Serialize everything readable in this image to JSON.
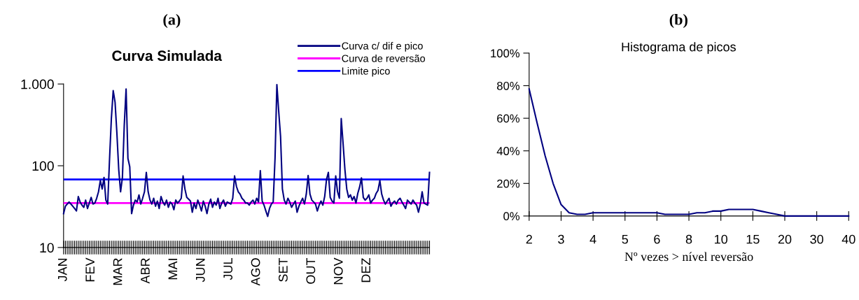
{
  "chart_data": [
    {
      "type": "line",
      "title": "(a)",
      "subtitle": "Curva Simulada",
      "log": "y",
      "legend": "top right",
      "grid": false,
      "marker": "none",
      "line_style": "solid",
      "categories": [
        "JAN",
        null,
        null,
        null,
        null,
        null,
        null,
        null,
        null,
        null,
        null,
        null,
        null,
        null,
        null,
        "FEV",
        null,
        null,
        null,
        null,
        null,
        null,
        null,
        null,
        null,
        null,
        null,
        null,
        null,
        null,
        "MAR",
        null,
        null,
        null,
        null,
        null,
        null,
        null,
        null,
        null,
        null,
        null,
        null,
        null,
        null,
        "ABR",
        null,
        null,
        null,
        null,
        null,
        null,
        null,
        null,
        null,
        null,
        null,
        null,
        null,
        null,
        "MAI",
        null,
        null,
        null,
        null,
        null,
        null,
        null,
        null,
        null,
        null,
        null,
        null,
        null,
        null,
        "JUN",
        null,
        null,
        null,
        null,
        null,
        null,
        null,
        null,
        null,
        null,
        null,
        null,
        null,
        null,
        "JUL",
        null,
        null,
        null,
        null,
        null,
        null,
        null,
        null,
        null,
        null,
        null,
        null,
        null,
        null,
        "AGO",
        null,
        null,
        null,
        null,
        null,
        null,
        null,
        null,
        null,
        null,
        null,
        null,
        null,
        null,
        "SET",
        null,
        null,
        null,
        null,
        null,
        null,
        null,
        null,
        null,
        null,
        null,
        null,
        null,
        null,
        "OUT",
        null,
        null,
        null,
        null,
        null,
        null,
        null,
        null,
        null,
        null,
        null,
        null,
        null,
        null,
        "NOV",
        null,
        null,
        null,
        null,
        null,
        null,
        null,
        null,
        null,
        null,
        null,
        null,
        null,
        null,
        "DEZ",
        null,
        null,
        null,
        null,
        null,
        null,
        null,
        null,
        null,
        null,
        null,
        null,
        null,
        null,
        null,
        null,
        null,
        null,
        null,
        null,
        null,
        null,
        null,
        null,
        null,
        null,
        null,
        null,
        null,
        null,
        null,
        null,
        null,
        null
      ],
      "ylim": [
        10,
        1000
      ],
      "yticks": [
        10,
        100,
        {
          "value": 1000,
          "label": "1.000"
        }
      ],
      "series": [
        {
          "name": "Curva c/ dif e pico",
          "color": "#000080",
          "values": [
            26,
            32,
            34,
            36,
            34,
            32,
            30,
            28,
            42,
            36,
            33,
            31,
            38,
            30,
            35,
            41,
            34,
            35,
            40,
            48,
            66,
            52,
            72,
            38,
            34,
            120,
            380,
            830,
            600,
            250,
            90,
            48,
            72,
            310,
            870,
            123,
            97,
            26,
            33,
            38,
            36,
            44,
            34,
            40,
            48,
            83,
            48,
            38,
            34,
            40,
            32,
            37,
            30,
            42,
            36,
            33,
            38,
            31,
            36,
            34,
            29,
            38,
            35,
            37,
            40,
            75,
            52,
            41,
            39,
            37,
            27,
            35,
            30,
            38,
            33,
            28,
            37,
            32,
            26,
            34,
            39,
            31,
            36,
            33,
            40,
            30,
            35,
            38,
            32,
            36,
            35,
            34,
            40,
            75,
            56,
            48,
            45,
            40,
            38,
            35,
            35,
            33,
            36,
            38,
            34,
            40,
            36,
            87,
            37,
            33,
            28,
            24,
            30,
            34,
            36,
            123,
            980,
            460,
            229,
            52,
            38,
            34,
            40,
            36,
            31,
            34,
            37,
            27,
            32,
            36,
            40,
            34,
            45,
            76,
            45,
            38,
            36,
            34,
            28,
            33,
            37,
            33,
            42,
            68,
            83,
            41,
            37,
            35,
            75,
            48,
            40,
            378,
            188,
            90,
            52,
            41,
            44,
            38,
            42,
            35,
            46,
            55,
            71,
            41,
            38,
            40,
            44,
            35,
            38,
            40,
            46,
            50,
            66,
            45,
            38,
            34,
            37,
            40,
            32,
            35,
            37,
            34,
            38,
            40,
            36,
            33,
            30,
            38,
            36,
            34,
            38,
            35,
            33,
            27,
            34,
            48,
            35,
            34,
            33,
            83
          ]
        }
      ],
      "ref_lines": [
        {
          "axis": "y",
          "value": 35,
          "label": "Curva de reversão",
          "color": "#ff00ff",
          "line_style": "solid"
        },
        {
          "axis": "y",
          "value": 68,
          "label": "Limite pico",
          "color": "#0000ff",
          "line_style": "solid"
        }
      ]
    },
    {
      "type": "line",
      "title": "(b)",
      "subtitle": "Histograma de picos",
      "xlabel": "Nº vezes > nível reversão",
      "legend": false,
      "grid": false,
      "marker": "none",
      "line_style": "solid",
      "categories": [
        "2",
        null,
        null,
        null,
        "3",
        null,
        null,
        null,
        "4",
        null,
        null,
        null,
        "5",
        null,
        null,
        null,
        "6",
        null,
        null,
        null,
        "8",
        null,
        null,
        null,
        "10",
        null,
        null,
        null,
        "15",
        null,
        null,
        null,
        "20",
        null,
        null,
        null,
        "30",
        null,
        null,
        null,
        "40"
      ],
      "ylim": [
        0,
        100
      ],
      "yticks": [
        {
          "value": 0,
          "label": "0%"
        },
        {
          "value": 20,
          "label": "20%"
        },
        {
          "value": 40,
          "label": "40%"
        },
        {
          "value": 60,
          "label": "60%"
        },
        {
          "value": 80,
          "label": "80%"
        },
        {
          "value": 100,
          "label": "100%"
        }
      ],
      "series": [
        {
          "color": "#000080",
          "values": [
            78,
            57,
            37,
            20,
            7,
            2,
            1,
            1,
            2,
            2,
            2,
            2,
            2,
            2,
            2,
            2,
            2,
            1,
            1,
            1,
            1,
            2,
            2,
            3,
            3,
            4,
            4,
            4,
            4,
            3,
            2,
            1,
            0,
            0,
            0,
            0,
            0,
            0,
            0,
            0,
            0
          ]
        }
      ]
    }
  ]
}
